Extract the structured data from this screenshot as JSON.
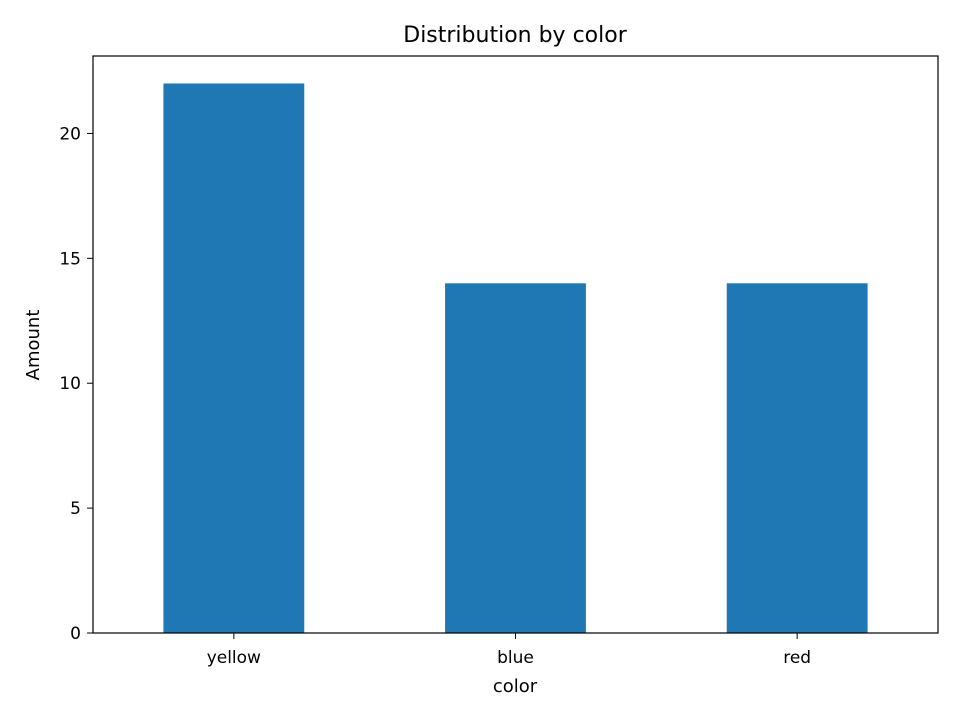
{
  "chart_data": {
    "type": "bar",
    "title": "Distribution by color",
    "xlabel": "color",
    "ylabel": "Amount",
    "categories": [
      "yellow",
      "blue",
      "red"
    ],
    "values": [
      22,
      14,
      14
    ],
    "ylim": [
      0,
      23.1
    ],
    "yticks": [
      0,
      5,
      10,
      15,
      20
    ],
    "grid": false,
    "colors": {
      "bar": "#1f77b4",
      "axis": "#000000",
      "background": "#ffffff"
    }
  }
}
